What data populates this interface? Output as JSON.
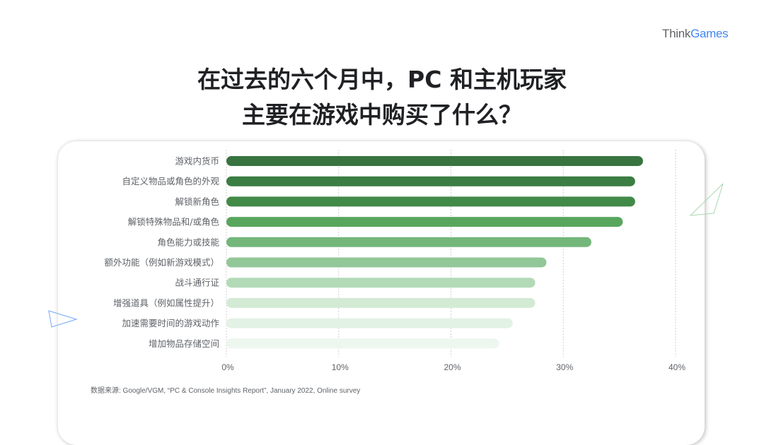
{
  "logo": {
    "part1": "Think",
    "part2": "Games"
  },
  "title": {
    "line1": "在过去的六个月中，PC 和主机玩家",
    "line2": "主要在游戏中购买了什么？"
  },
  "source": "数据来源: Google/VGM, “PC & Console Insights Report”, January 2022, Online survey",
  "chart_data": {
    "type": "bar",
    "orientation": "horizontal",
    "categories": [
      "游戏内货币",
      "自定义物品或角色的外观",
      "解锁新角色",
      "解锁特殊物品和/或角色",
      "角色能力或技能",
      "额外功能（例如新游戏模式）",
      "战斗通行证",
      "增强道具（例如属性提升）",
      "加速需要时间的游戏动作",
      "增加物品存储空间"
    ],
    "values": [
      37.1,
      36.4,
      36.4,
      35.3,
      32.5,
      28.5,
      27.5,
      27.5,
      25.5,
      24.3
    ],
    "colors": [
      "#37743f",
      "#3b7d43",
      "#428a48",
      "#58a65e",
      "#73b77a",
      "#92c797",
      "#b3dab6",
      "#d3ead5",
      "#e2f2e5",
      "#eef7ef"
    ],
    "xlim": [
      0,
      40
    ],
    "xticks": [
      "0%",
      "10%",
      "20%",
      "30%",
      "40%"
    ],
    "grid": true,
    "legend": "none"
  }
}
